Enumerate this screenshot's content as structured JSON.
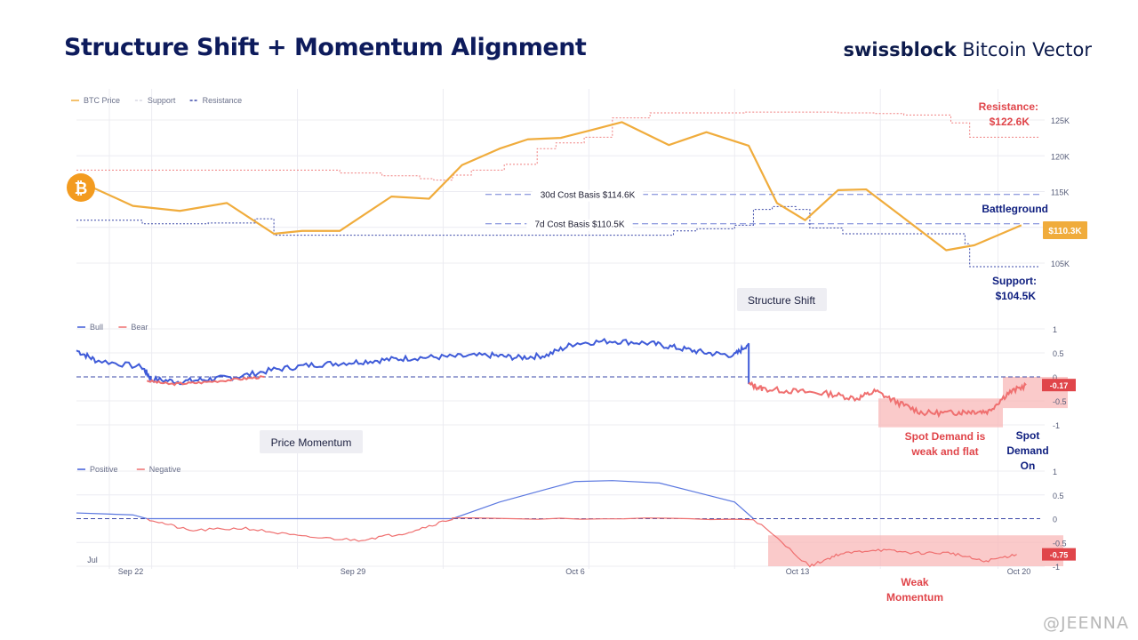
{
  "header": {
    "title": "Structure Shift + Momentum Alignment",
    "brand_bold": "swissblock",
    "brand_rest": "Bitcoin Vector"
  },
  "watermark": "@JEENNA",
  "colors": {
    "price": "#f0ac3c",
    "support": "#3b48a8",
    "resistance": "#f08080",
    "bull": "#3f5bd8",
    "bear": "#ef6f6f",
    "shade": "#f8b8b8",
    "text_red": "#e0454a",
    "text_navy": "#102080"
  },
  "chart_data": [
    {
      "type": "line",
      "id": "price",
      "legend": [
        "BTC Price",
        "Support",
        "Resistance"
      ],
      "x_ticks": [
        "Jul",
        "Sep 22",
        "Sep 29",
        "Oct 6",
        "Oct 13",
        "Oct 20"
      ],
      "y_ticks": [
        "125K",
        "120K",
        "115K",
        "110K",
        "105K"
      ],
      "ylim": [
        102,
        127
      ],
      "x_range": [
        15.0,
        35.5
      ],
      "series": [
        {
          "name": "BTC Price",
          "x": [
            15.2,
            16.2,
            17.2,
            18.2,
            19.2,
            19.8,
            20.6,
            21.7,
            22.5,
            23.2,
            24.0,
            24.6,
            25.3,
            25.9,
            26.6,
            27.6,
            28.4,
            29.3,
            29.9,
            30.5,
            31.2,
            31.8,
            33.5,
            34.1,
            35.1
          ],
          "y": [
            116.0,
            113.0,
            112.3,
            113.4,
            109.1,
            109.5,
            109.5,
            114.3,
            114.0,
            118.7,
            121.0,
            122.3,
            122.5,
            123.5,
            124.7,
            121.5,
            123.3,
            121.4,
            113.4,
            111.0,
            115.2,
            115.3,
            106.8,
            107.5,
            110.3
          ]
        },
        {
          "name": "Support",
          "x": [
            15.0,
            16.0,
            16.4,
            17.4,
            17.8,
            18.8,
            19.2,
            22.0,
            24.7,
            26.7,
            27.7,
            28.2,
            29.0,
            29.4,
            29.8,
            30.3,
            30.6,
            31.3,
            33.4,
            33.9,
            34.0,
            35.5
          ],
          "y": [
            111.0,
            111.0,
            110.5,
            110.5,
            110.6,
            111.2,
            108.9,
            108.9,
            108.9,
            108.9,
            109.5,
            109.8,
            110.3,
            112.5,
            112.9,
            112.5,
            109.9,
            109.1,
            109.1,
            107.7,
            104.5,
            104.5
          ]
        },
        {
          "name": "Resistance",
          "x": [
            15.0,
            19.0,
            20.6,
            21.5,
            22.3,
            22.6,
            23.0,
            23.4,
            24.1,
            24.8,
            25.2,
            25.8,
            26.4,
            26.8,
            27.2,
            27.8,
            28.6,
            29.2,
            30.4,
            31.2,
            32.0,
            32.6,
            33.6,
            34.0,
            34.4,
            35.5
          ],
          "y": [
            118.0,
            118.0,
            117.6,
            117.2,
            116.8,
            116.6,
            117.3,
            118.0,
            118.8,
            121.0,
            121.8,
            122.6,
            125.3,
            125.3,
            126.0,
            126.0,
            126.0,
            126.1,
            126.1,
            126.0,
            125.9,
            125.7,
            124.6,
            122.6,
            122.6,
            122.6
          ]
        }
      ],
      "annotations": [
        {
          "label": "Resistance:",
          "value": "$122.6K"
        },
        {
          "label": "Support:",
          "value": "$104.5K"
        },
        {
          "label": "Battleground"
        },
        {
          "label": "30d Cost Basis $114.6K",
          "y": 114.6
        },
        {
          "label": "7d Cost Basis $110.5K",
          "y": 110.5
        },
        {
          "label": "$110.3K",
          "y": 110.3
        }
      ]
    },
    {
      "type": "line",
      "id": "spot_demand",
      "legend": [
        "Bull",
        "Bear"
      ],
      "y_ticks": [
        "1",
        "0.5",
        "0",
        "-0.5",
        "-1"
      ],
      "ylim": [
        -1,
        1
      ],
      "baseline": 0,
      "series": [
        {
          "name": "Bull",
          "x": [
            15.0,
            15.4,
            16.4,
            16.6,
            17.2,
            17.8,
            18.4,
            19.2,
            20.0,
            20.8,
            21.5,
            22.2,
            23.0,
            23.8,
            24.4,
            25.0,
            25.6,
            26.4,
            27.2,
            27.8,
            28.4,
            29.0,
            29.3
          ],
          "y": [
            0.55,
            0.35,
            0.2,
            -0.05,
            -0.1,
            -0.05,
            0.0,
            0.15,
            0.25,
            0.3,
            0.35,
            0.4,
            0.42,
            0.45,
            0.4,
            0.45,
            0.7,
            0.75,
            0.7,
            0.6,
            0.5,
            0.45,
            0.7
          ]
        },
        {
          "name": "Bear",
          "x": [
            29.3,
            29.6,
            30.3,
            31.0,
            31.6,
            32.0,
            32.5,
            33.0,
            33.6,
            34.0,
            34.4,
            34.8,
            35.2
          ],
          "y": [
            -0.15,
            -0.25,
            -0.3,
            -0.35,
            -0.45,
            -0.3,
            -0.55,
            -0.75,
            -0.75,
            -0.72,
            -0.72,
            -0.35,
            -0.17
          ]
        }
      ],
      "annotations": [
        {
          "label": "Structure Shift"
        },
        {
          "label": "-0.17",
          "y": -0.17
        },
        {
          "label": "Spot Demand is",
          "line2": "weak and flat"
        },
        {
          "label": "Spot",
          "line2": "Demand",
          "line3": "On"
        }
      ]
    },
    {
      "type": "line",
      "id": "price_momentum",
      "legend": [
        "Positive",
        "Negative"
      ],
      "y_ticks": [
        "1",
        "0.5",
        "0",
        "-0.5",
        "-1"
      ],
      "ylim": [
        -1,
        1
      ],
      "baseline": 0,
      "series": [
        {
          "name": "Positive",
          "x": [
            15.0,
            15.6,
            16.2,
            16.5,
            23.0,
            24.0,
            25.0,
            25.6,
            26.4,
            27.4,
            28.2,
            29.0,
            29.4
          ],
          "y": [
            0.12,
            0.1,
            0.08,
            0.0,
            0.0,
            0.35,
            0.62,
            0.78,
            0.8,
            0.75,
            0.55,
            0.35,
            0.0
          ]
        },
        {
          "name": "Negative",
          "x": [
            16.5,
            17.4,
            18.6,
            19.8,
            21.0,
            22.0,
            23.0,
            23.0,
            29.4,
            30.6,
            31.2,
            32.0,
            32.8,
            33.6,
            34.3,
            35.0
          ],
          "y": [
            0.0,
            -0.25,
            -0.2,
            -0.38,
            -0.45,
            -0.3,
            0.0,
            0.0,
            0.0,
            -1.0,
            -0.75,
            -0.65,
            -0.72,
            -0.72,
            -0.9,
            -0.75
          ]
        }
      ],
      "annotations": [
        {
          "label": "Price Momentum"
        },
        {
          "label": "-0.75",
          "y": -0.75
        },
        {
          "label": "Weak",
          "line2": "Momentum"
        }
      ]
    }
  ]
}
